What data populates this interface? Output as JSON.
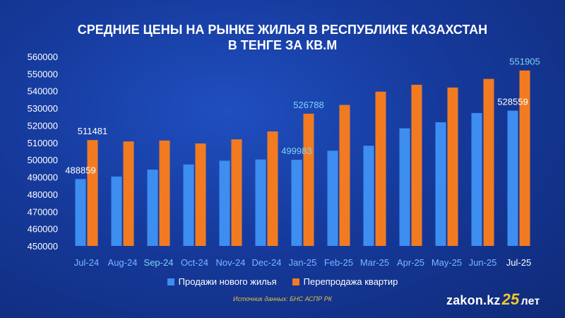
{
  "chart_data": {
    "type": "bar",
    "title_lines": [
      "СРЕДНИЕ ЦЕНЫ НА РЫНКЕ ЖИЛЬЯ В РЕСПУБЛИКЕ КАЗАХСТАН",
      "В ТЕНГЕ ЗА КВ.М"
    ],
    "categories": [
      "Jul-24",
      "Aug-24",
      "Sep-24",
      "Oct-24",
      "Nov-24",
      "Dec-24",
      "Jan-25",
      "Feb-25",
      "Mar-25",
      "Apr-25",
      "May-25",
      "Jun-25",
      "Jul-25"
    ],
    "ylim": [
      450000,
      560000
    ],
    "yticks": [
      "450000",
      "460000",
      "470000",
      "480000",
      "490000",
      "500000",
      "510000",
      "520000",
      "530000",
      "540000",
      "550000",
      "560000"
    ],
    "series": [
      {
        "name": "Продажи нового жилья",
        "color": "#3d8ef0",
        "values": [
          488859,
          490300,
          494300,
          497300,
          499500,
          500200,
          499983,
          505300,
          508200,
          518300,
          521800,
          527200,
          528559
        ],
        "data_labels": {
          "0": "488859",
          "6": "499983",
          "12": "528559"
        }
      },
      {
        "name": "Перепродажа квартир",
        "color": "#f27b22",
        "values": [
          511481,
          510700,
          511200,
          509500,
          511900,
          516500,
          526788,
          531900,
          539600,
          543600,
          542000,
          547000,
          551905
        ],
        "data_labels": {
          "0": "511481",
          "6": "526788",
          "12": "551905"
        }
      }
    ],
    "tick_label_colors": {
      "2": "#7fd3f5",
      "12": "#ffffff"
    },
    "grid": false,
    "legend_position": "bottom"
  },
  "source_text": "Источник данных: БНС АСПР РК",
  "brand": {
    "name": "zakon.kz",
    "number": "25",
    "suffix": "лет"
  }
}
